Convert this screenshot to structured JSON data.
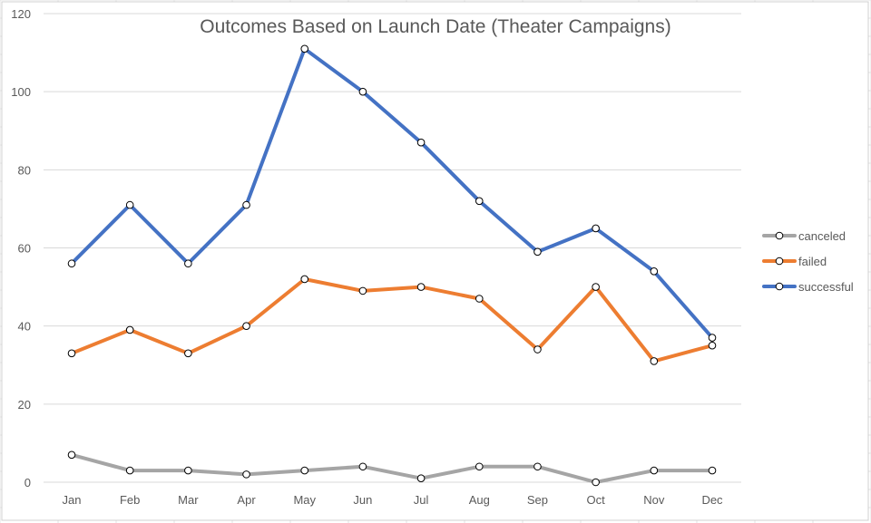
{
  "chart_data": {
    "type": "line",
    "title": "Outcomes Based on Launch Date (Theater Campaigns)",
    "xlabel": "",
    "ylabel": "",
    "categories": [
      "Jan",
      "Feb",
      "Mar",
      "Apr",
      "May",
      "Jun",
      "Jul",
      "Aug",
      "Sep",
      "Oct",
      "Nov",
      "Dec"
    ],
    "ylim": [
      0,
      120
    ],
    "yticks": [
      0,
      20,
      40,
      60,
      80,
      100,
      120
    ],
    "grid": true,
    "legend_position": "right",
    "markers": true,
    "series": [
      {
        "name": "canceled",
        "color": "#a5a5a5",
        "values": [
          7,
          3,
          3,
          2,
          3,
          4,
          1,
          4,
          4,
          0,
          3,
          3
        ]
      },
      {
        "name": "failed",
        "color": "#ed7d31",
        "values": [
          33,
          39,
          33,
          40,
          52,
          49,
          50,
          47,
          34,
          50,
          31,
          35
        ]
      },
      {
        "name": "successful",
        "color": "#4472c4",
        "values": [
          56,
          71,
          56,
          71,
          111,
          100,
          87,
          72,
          59,
          65,
          54,
          37
        ]
      }
    ]
  }
}
